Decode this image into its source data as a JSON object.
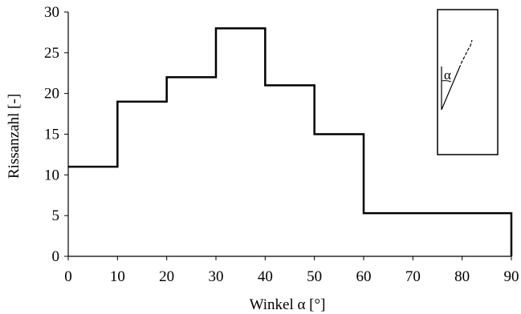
{
  "chart_data": {
    "type": "line",
    "step": true,
    "x": [
      0,
      10,
      20,
      30,
      40,
      50,
      60,
      90
    ],
    "y": [
      11,
      19,
      22,
      28,
      21,
      15,
      5.3,
      5.3
    ],
    "xlabel": "Winkel α [°]",
    "ylabel": "Rissanzahl [-]",
    "xlim": [
      0,
      90
    ],
    "ylim": [
      0,
      30
    ],
    "xticks": [
      "0",
      "10",
      "20",
      "30",
      "40",
      "50",
      "60",
      "70",
      "80",
      "90"
    ],
    "yticks": [
      "0",
      "5",
      "10",
      "15",
      "20",
      "25",
      "30"
    ],
    "grid": false,
    "inset_symbol": "α",
    "line_color": "#000000"
  }
}
